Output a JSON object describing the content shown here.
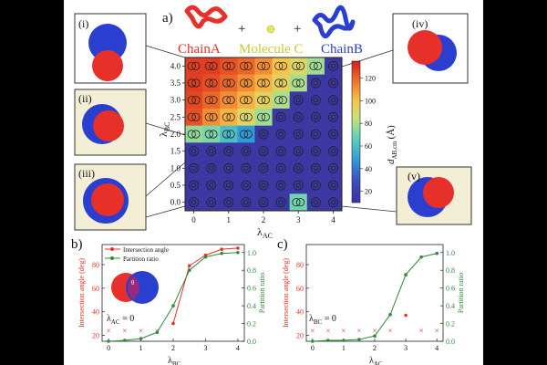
{
  "panel_labels": {
    "a": "a)",
    "b": "b)",
    "c": "c)"
  },
  "legend_labels": {
    "chain_a": "ChainA",
    "molecule_c": "Molecule C",
    "chain_b": "ChainB",
    "plus": "+"
  },
  "snapshot_labels": [
    "(i)",
    "(ii)",
    "(iii)",
    "(iv)",
    "(v)"
  ],
  "colors": {
    "chain_a": "#e8302a",
    "molecule_c": "#e8e84a",
    "chain_b": "#2a3fd0",
    "angle": "#e8302a",
    "ratio": "#2f8a3a",
    "background": "#000000"
  },
  "chart_data": [
    {
      "type": "heatmap",
      "panel": "a",
      "xlabel_main": "λ",
      "xlabel_sub": "AC",
      "ylabel_main": "λ",
      "ylabel_sub": "BC",
      "x_ticks": [
        "0",
        "1",
        "2",
        "3",
        "4"
      ],
      "y_ticks": [
        "0.0",
        "0.5",
        "1.0",
        "1.5",
        "2.0",
        "2.5",
        "3.0",
        "3.5",
        "4.0"
      ],
      "x_values": [
        0,
        0.5,
        1,
        1.5,
        2,
        2.5,
        3,
        3.5,
        4
      ],
      "y_values": [
        0,
        0.5,
        1,
        1.5,
        2,
        2.5,
        3,
        3.5,
        4
      ],
      "colorbar_label_main": "d",
      "colorbar_label_sub": "AB,cm",
      "colorbar_label_unit": "(Å)",
      "colorbar_ticks": [
        "20",
        "40",
        "60",
        "80",
        "100",
        "120"
      ],
      "zlim": [
        10,
        135
      ],
      "z_rows_top_to_bottom": [
        [
          128,
          128,
          124,
          120,
          112,
          100,
          92,
          78,
          12
        ],
        [
          128,
          125,
          120,
          112,
          104,
          94,
          80,
          12,
          12
        ],
        [
          126,
          120,
          112,
          104,
          94,
          80,
          12,
          12,
          12
        ],
        [
          124,
          112,
          104,
          92,
          78,
          12,
          12,
          12,
          12
        ],
        [
          76,
          72,
          60,
          48,
          12,
          12,
          12,
          12,
          12
        ],
        [
          12,
          12,
          12,
          12,
          12,
          12,
          12,
          12,
          12
        ],
        [
          12,
          12,
          12,
          12,
          12,
          12,
          12,
          12,
          12
        ],
        [
          12,
          12,
          12,
          12,
          12,
          12,
          12,
          12,
          12
        ],
        [
          12,
          12,
          12,
          12,
          12,
          12,
          70,
          12,
          12
        ]
      ],
      "marker_rows_top_to_bottom": [
        [
          "p",
          "p",
          "p",
          "p",
          "p",
          "p",
          "p",
          "p",
          "c"
        ],
        [
          "p",
          "p",
          "p",
          "p",
          "p",
          "p",
          "p",
          "c",
          "c"
        ],
        [
          "p",
          "p",
          "p",
          "p",
          "p",
          "p",
          "c",
          "c",
          "c"
        ],
        [
          "p",
          "p",
          "p",
          "p",
          "p",
          "c",
          "c",
          "c",
          "c"
        ],
        [
          "p",
          "p",
          "p",
          "p",
          "c",
          "c",
          "c",
          "c",
          "c"
        ],
        [
          "c",
          "c",
          "c",
          "c",
          "c",
          "c",
          "c",
          "c",
          "c"
        ],
        [
          "c",
          "c",
          "c",
          "c",
          "c",
          "c",
          "c",
          "c",
          "c"
        ],
        [
          "c",
          "c",
          "c",
          "c",
          "c",
          "c",
          "c",
          "c",
          "c"
        ],
        [
          "c",
          "c",
          "c",
          "c",
          "c",
          "c",
          "p",
          "c",
          "c"
        ]
      ]
    },
    {
      "type": "line",
      "panel": "b",
      "xlabel_main": "λ",
      "xlabel_sub": "BC",
      "ylabel_left": "Intersection angle (deg)",
      "ylabel_right": "Partition ratio",
      "annotation_main": "λ",
      "annotation_sub": "AC",
      "annotation_tail": " = 0",
      "x_ticks": [
        "0",
        "1",
        "2",
        "3",
        "4"
      ],
      "y_left_ticks": [
        "20",
        "40",
        "60",
        "80"
      ],
      "y_right_ticks": [
        "0.0",
        "0.2",
        "0.4",
        "0.6",
        "0.8",
        "1.0"
      ],
      "xlim": [
        -0.2,
        4.2
      ],
      "ylim_left": [
        15,
        97
      ],
      "ylim_right": [
        0,
        1.09
      ],
      "series": [
        {
          "name": "Intersection angle",
          "axis": "left",
          "color": "#e8302a",
          "marker": "x",
          "connect": false,
          "x": [
            0,
            0.5,
            1,
            1.5
          ],
          "y": [
            24,
            24,
            24,
            24
          ]
        },
        {
          "name": "Intersection angle",
          "axis": "left",
          "color": "#e8302a",
          "marker": "circle",
          "connect": true,
          "x": [
            2,
            2.5,
            3,
            3.5,
            4
          ],
          "y": [
            30,
            79,
            88,
            93,
            94
          ]
        },
        {
          "name": "Partition ratio",
          "axis": "right",
          "color": "#2f8a3a",
          "marker": "circle",
          "connect": true,
          "x": [
            0,
            0.5,
            1,
            1.5,
            2,
            2.5,
            3,
            3.5,
            4
          ],
          "y": [
            0.0,
            0.01,
            0.03,
            0.1,
            0.4,
            0.8,
            0.95,
            0.99,
            1.0
          ]
        }
      ],
      "legend": [
        "Intersection angle",
        "Partition ratio"
      ],
      "inset_label": "θ"
    },
    {
      "type": "line",
      "panel": "c",
      "xlabel_main": "λ",
      "xlabel_sub": "AC",
      "ylabel_left": "Intersection angle (deg)",
      "ylabel_right": "Partition ratio",
      "annotation_main": "λ",
      "annotation_sub": "BC",
      "annotation_tail": " = 0",
      "x_ticks": [
        "0",
        "1",
        "2",
        "3",
        "4"
      ],
      "y_left_ticks": [
        "20",
        "40",
        "60",
        "80"
      ],
      "y_right_ticks": [
        "0.0",
        "0.2",
        "0.4",
        "0.6",
        "0.8",
        "1.0"
      ],
      "xlim": [
        -0.2,
        4.2
      ],
      "ylim_left": [
        15,
        97
      ],
      "ylim_right": [
        0,
        1.09
      ],
      "series": [
        {
          "name": "Intersection angle",
          "axis": "left",
          "color": "#e8302a",
          "marker": "x",
          "connect": false,
          "x": [
            0,
            0.5,
            1,
            1.5,
            2,
            2.5,
            3.5,
            4
          ],
          "y": [
            24,
            24,
            24,
            24,
            24,
            24,
            24,
            24
          ]
        },
        {
          "name": "Intersection angle",
          "axis": "left",
          "color": "#e8302a",
          "marker": "circle",
          "connect": false,
          "x": [
            3
          ],
          "y": [
            37
          ]
        },
        {
          "name": "Partition ratio",
          "axis": "right",
          "color": "#2f8a3a",
          "marker": "circle",
          "connect": true,
          "x": [
            0,
            0.5,
            1,
            1.5,
            2,
            2.5,
            3,
            3.5,
            4
          ],
          "y": [
            0.0,
            0.01,
            0.01,
            0.02,
            0.06,
            0.3,
            0.75,
            0.95,
            0.99
          ]
        }
      ]
    }
  ]
}
